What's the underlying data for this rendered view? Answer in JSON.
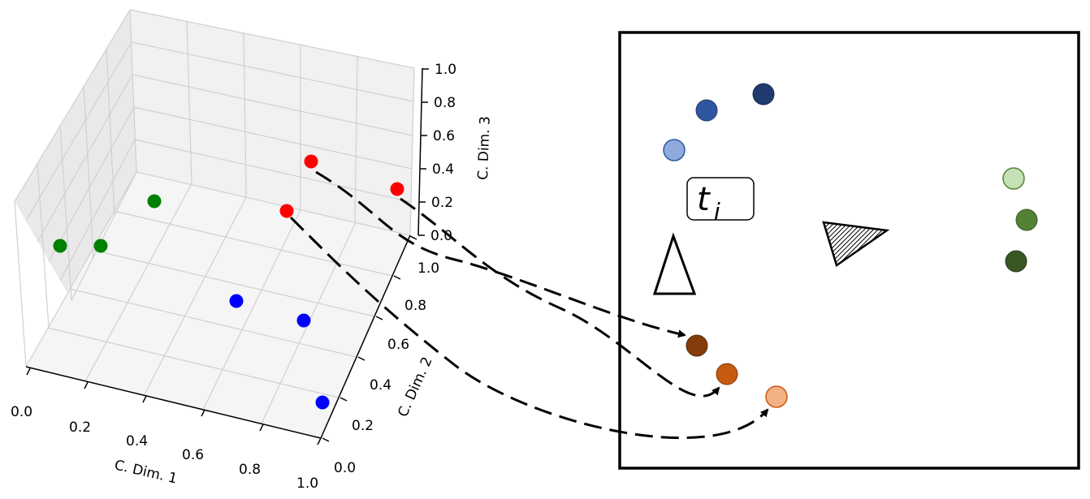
{
  "plot3d": {
    "xlabel": "C. Dim. 1",
    "ylabel": "C. Dim. 2",
    "zlabel": "C. Dim. 3",
    "x_ticks": [
      "0.0",
      "0.2",
      "0.4",
      "0.6",
      "0.8",
      "1.0"
    ],
    "y_ticks": [
      "0.0",
      "0.2",
      "0.4",
      "0.6",
      "0.8",
      "1.0"
    ],
    "z_ticks": [
      "0.0",
      "0.2",
      "0.4",
      "0.6",
      "0.8",
      "1.0"
    ]
  },
  "panel": {
    "tag_base": "t",
    "tag_sub": "i"
  },
  "colors": {
    "red": "#ff0000",
    "green": "#008000",
    "blue": "#0000ff",
    "blue_group": [
      "#1f3a6e",
      "#2f56a0",
      "#8faadc"
    ],
    "green_group": [
      "#c5e0b4",
      "#548235",
      "#385723"
    ],
    "orange_group": [
      "#843c0c",
      "#c55a11",
      "#f4b183"
    ]
  }
}
